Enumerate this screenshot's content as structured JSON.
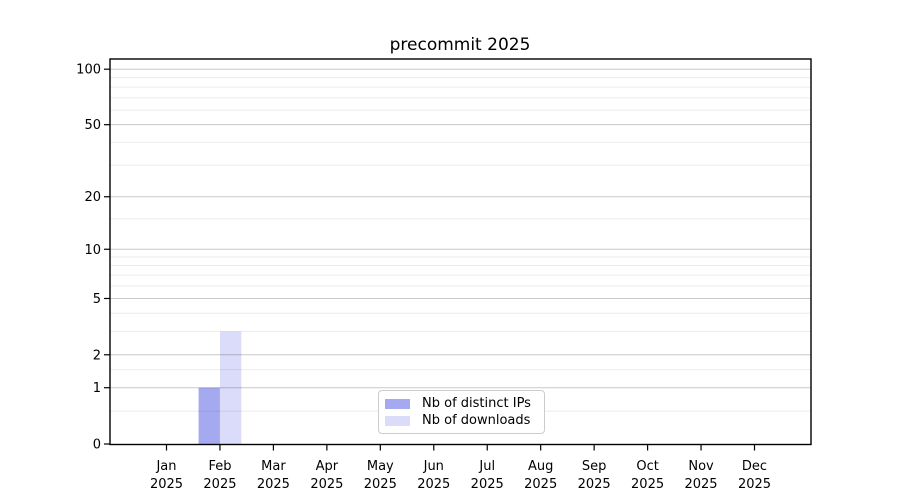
{
  "chart_data": {
    "type": "bar",
    "title": "precommit 2025",
    "x_categories": [
      {
        "month": "Jan",
        "year": "2025"
      },
      {
        "month": "Feb",
        "year": "2025"
      },
      {
        "month": "Mar",
        "year": "2025"
      },
      {
        "month": "Apr",
        "year": "2025"
      },
      {
        "month": "May",
        "year": "2025"
      },
      {
        "month": "Jun",
        "year": "2025"
      },
      {
        "month": "Jul",
        "year": "2025"
      },
      {
        "month": "Aug",
        "year": "2025"
      },
      {
        "month": "Sep",
        "year": "2025"
      },
      {
        "month": "Oct",
        "year": "2025"
      },
      {
        "month": "Nov",
        "year": "2025"
      },
      {
        "month": "Dec",
        "year": "2025"
      }
    ],
    "series": [
      {
        "name": "Nb of distinct IPs",
        "color": "#a5a9f0",
        "values": [
          0,
          1,
          0,
          0,
          0,
          0,
          0,
          0,
          0,
          0,
          0,
          0
        ]
      },
      {
        "name": "Nb of downloads",
        "color": "#dadcf9",
        "values": [
          0,
          3,
          0,
          0,
          0,
          0,
          0,
          0,
          0,
          0,
          0,
          0
        ]
      }
    ],
    "y_scale": "log10(1+x)",
    "y_major_ticks": [
      0,
      1,
      2,
      5,
      10,
      20,
      50,
      100
    ],
    "y_minor_gridlines": [
      0.5,
      1.5,
      3,
      4,
      6,
      7,
      8,
      9,
      15,
      30,
      40,
      60,
      70,
      80,
      90
    ],
    "ylim": [
      0,
      113
    ],
    "grid": "horizontal",
    "legend_position": "lower center",
    "colors": {
      "spine": "#000000",
      "tick_label": "#000000",
      "major_grid": "rgba(0,0,0,0.21)",
      "minor_grid": "rgba(0,0,0,0.08)",
      "background": "#ffffff"
    }
  }
}
